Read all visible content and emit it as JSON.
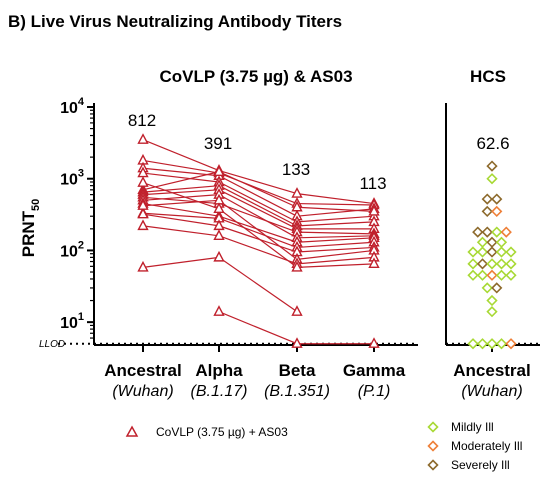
{
  "header": {
    "title": "B) Live Virus Neutralizing Antibody Titers"
  },
  "colors": {
    "vaccine": "#c0202c",
    "mildly": "#a8d935",
    "moderately": "#ee7f38",
    "severely": "#8d6a2c",
    "axis": "#000000"
  },
  "chart_data": [
    {
      "type": "line",
      "title": "CoVLP (3.75 µg) & AS03",
      "ylabel": "PRNT",
      "ylabel_sub": "50",
      "yscale": "log",
      "ylim": [
        4.8,
        10000
      ],
      "yticks": [
        {
          "value": 10,
          "base": "10",
          "exp": "1"
        },
        {
          "value": 100,
          "base": "10",
          "exp": "2"
        },
        {
          "value": 1000,
          "base": "10",
          "exp": "3"
        },
        {
          "value": 10000,
          "base": "10",
          "exp": "4"
        }
      ],
      "llod": {
        "value": 5,
        "label": "LLOD"
      },
      "categories": [
        "Ancestral",
        "Alpha",
        "Beta",
        "Gamma"
      ],
      "category_sublabels": [
        "(Wuhan)",
        "(B.1.17)",
        "(B.1.351)",
        "(P.1)"
      ],
      "gmt_labels": [
        "812",
        "391",
        "133",
        "113"
      ],
      "legend": {
        "label": "CoVLP (3.75 µg) + AS03",
        "marker": "open-triangle",
        "placement": "bottom-left"
      },
      "series": [
        {
          "values": [
            3500,
            1300,
            620,
            450
          ]
        },
        {
          "values": [
            1800,
            1200,
            450,
            430
          ]
        },
        {
          "values": [
            1400,
            1100,
            300,
            380
          ]
        },
        {
          "values": [
            1200,
            900,
            250,
            300
          ]
        },
        {
          "values": [
            700,
            1250,
            400,
            350
          ]
        },
        {
          "values": [
            650,
            800,
            220,
            250
          ]
        },
        {
          "values": [
            600,
            700,
            200,
            200
          ]
        },
        {
          "values": [
            550,
            450,
            180,
            170
          ]
        },
        {
          "values": [
            500,
            600,
            150,
            160
          ]
        },
        {
          "values": [
            450,
            300,
            130,
            150
          ]
        },
        {
          "values": [
            330,
            280,
            110,
            130
          ]
        },
        {
          "values": [
            320,
            220,
            95,
            110
          ]
        },
        {
          "values": [
            420,
            500,
            75,
            100
          ]
        },
        {
          "values": [
            220,
            160,
            65,
            80
          ]
        },
        {
          "values": [
            880,
            380,
            58,
            65
          ]
        },
        {
          "values": [
            58,
            80,
            14,
            null
          ]
        },
        {
          "values": [
            null,
            14,
            5,
            5
          ]
        }
      ]
    },
    {
      "type": "scatter",
      "title": "HCS",
      "category": "Ancestral",
      "category_sublabel": "(Wuhan)",
      "gmt_label": "62.6",
      "legend": [
        {
          "key": "mildly",
          "label": "Mildly Ill"
        },
        {
          "key": "moderately",
          "label": "Moderately Ill"
        },
        {
          "key": "severely",
          "label": "Severely Ill"
        }
      ],
      "points": [
        {
          "y": 1500,
          "g": "severely"
        },
        {
          "y": 1000,
          "g": "mildly"
        },
        {
          "y": 520,
          "g": "severely"
        },
        {
          "y": 520,
          "g": "severely"
        },
        {
          "y": 350,
          "g": "severely"
        },
        {
          "y": 350,
          "g": "moderately"
        },
        {
          "y": 180,
          "g": "severely"
        },
        {
          "y": 180,
          "g": "severely"
        },
        {
          "y": 180,
          "g": "mildly"
        },
        {
          "y": 180,
          "g": "moderately"
        },
        {
          "y": 130,
          "g": "mildly"
        },
        {
          "y": 130,
          "g": "severely"
        },
        {
          "y": 130,
          "g": "mildly"
        },
        {
          "y": 95,
          "g": "mildly"
        },
        {
          "y": 95,
          "g": "mildly"
        },
        {
          "y": 95,
          "g": "severely"
        },
        {
          "y": 95,
          "g": "mildly"
        },
        {
          "y": 95,
          "g": "mildly"
        },
        {
          "y": 65,
          "g": "mildly"
        },
        {
          "y": 65,
          "g": "severely"
        },
        {
          "y": 65,
          "g": "mildly"
        },
        {
          "y": 65,
          "g": "mildly"
        },
        {
          "y": 65,
          "g": "mildly"
        },
        {
          "y": 45,
          "g": "mildly"
        },
        {
          "y": 45,
          "g": "mildly"
        },
        {
          "y": 45,
          "g": "moderately"
        },
        {
          "y": 45,
          "g": "mildly"
        },
        {
          "y": 45,
          "g": "mildly"
        },
        {
          "y": 30,
          "g": "mildly"
        },
        {
          "y": 30,
          "g": "severely"
        },
        {
          "y": 20,
          "g": "mildly"
        },
        {
          "y": 14,
          "g": "mildly"
        },
        {
          "y": 5,
          "g": "mildly"
        },
        {
          "y": 5,
          "g": "mildly"
        },
        {
          "y": 5,
          "g": "mildly"
        },
        {
          "y": 5,
          "g": "mildly"
        },
        {
          "y": 5,
          "g": "moderately"
        }
      ]
    }
  ]
}
